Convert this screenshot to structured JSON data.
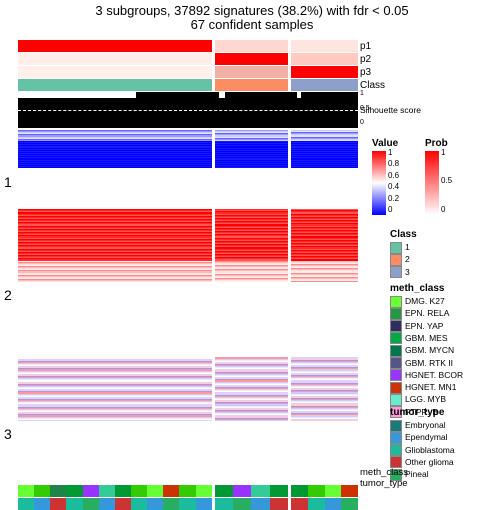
{
  "title_line1": "3 subgroups, 37892 signatures (38.2%) with fdr < 0.05",
  "title_line2": "67 confident samples",
  "annotation_tracks": [
    "p1",
    "p2",
    "p3",
    "Class"
  ],
  "silhouette_label": "Silhouette score",
  "sil_ticks": [
    "1",
    "0.5",
    "0"
  ],
  "column_groups": {
    "widths_pct": [
      58,
      22,
      20
    ],
    "p_tracks": {
      "p1": [
        "#ff0000",
        "#fed8d0",
        "#ffe5e0"
      ],
      "p2": [
        "#ffeee9",
        "#ff0000",
        "#ffc8c0"
      ],
      "p3": [
        "#fff0ec",
        "#f0b0a6",
        "#ff0000"
      ],
      "Class": [
        "#66c2a5",
        "#fc8d62",
        "#8da0cb"
      ]
    },
    "sil_white_width_pct": [
      60,
      8,
      6
    ]
  },
  "row_groups": [
    {
      "label": "1",
      "height_pct": 22,
      "palette": "blue"
    },
    {
      "label": "2",
      "height_pct": 42,
      "palette": "red"
    },
    {
      "label": "3",
      "height_pct": 36,
      "palette": "mixed"
    }
  ],
  "bottom_tracks": {
    "meth_class": {
      "label": "meth_class",
      "colors": [
        "#66ff33",
        "#33cc00",
        "#1e8449",
        "#009933",
        "#9933ff",
        "#33cc99",
        "#009933",
        "#33cc00",
        "#66ff33",
        "#cc3300",
        "#33cc00"
      ]
    },
    "tumor_type": {
      "label": "tumor_type",
      "colors": [
        "#1abc9c",
        "#3498db",
        "#cc3333",
        "#1abc9c",
        "#27ae60",
        "#3498db",
        "#cc3333",
        "#1abc9c",
        "#3498db",
        "#27ae60"
      ]
    }
  },
  "legends": {
    "value": {
      "title": "Value",
      "ticks": [
        "1",
        "0.8",
        "0.6",
        "0.4",
        "0.2",
        "0"
      ],
      "gradient": [
        "#ff0000",
        "#ffffff",
        "#0000ff"
      ]
    },
    "prob": {
      "title": "Prob",
      "ticks": [
        "1",
        "0.5",
        "0"
      ],
      "gradient": [
        "#ff0000",
        "#ffffff"
      ]
    },
    "class": {
      "title": "Class",
      "items": [
        {
          "label": "1",
          "color": "#66c2a5"
        },
        {
          "label": "2",
          "color": "#fc8d62"
        },
        {
          "label": "3",
          "color": "#8da0cb"
        }
      ]
    },
    "meth_class": {
      "title": "meth_class",
      "items": [
        {
          "label": "DMG. K27",
          "color": "#66ff33"
        },
        {
          "label": "EPN. RELA",
          "color": "#229944"
        },
        {
          "label": "EPN. YAP",
          "color": "#2d2d60"
        },
        {
          "label": "GBM. MES",
          "color": "#00aa44"
        },
        {
          "label": "GBM. MYCN",
          "color": "#00774d"
        },
        {
          "label": "GBM. RTK II",
          "color": "#555588"
        },
        {
          "label": "HGNET. BCOR",
          "color": "#9933ff"
        },
        {
          "label": "HGNET. MN1",
          "color": "#cc3300"
        },
        {
          "label": "LGG. MYB",
          "color": "#66eecc"
        },
        {
          "label": "PTPR. B",
          "color": "#ff99dd"
        }
      ]
    },
    "tumor_type": {
      "title": "tumor_type",
      "items": [
        {
          "label": "Embryonal",
          "color": "#1a7a7a"
        },
        {
          "label": "Ependymal",
          "color": "#3498db"
        },
        {
          "label": "Glioblastoma",
          "color": "#1abc9c"
        },
        {
          "label": "Other glioma",
          "color": "#cc3333"
        },
        {
          "label": "Pineal",
          "color": "#27ae60"
        }
      ]
    }
  },
  "heatmap_style": {
    "blue_colors": [
      "#0000ff",
      "#1a1aff",
      "#3333ff",
      "#6666ff",
      "#9999ff",
      "#ccccff",
      "#e0e0ff"
    ],
    "red_colors": [
      "#ff0000",
      "#ff2a2a",
      "#ff5555",
      "#ff8888",
      "#ffbbbb",
      "#ffe0e0",
      "#fff0f0"
    ],
    "mixed_colors": [
      "#ff9999",
      "#ffcccc",
      "#ffffff",
      "#ccccff",
      "#9999ff",
      "#e0d0ff",
      "#f0e8ff"
    ]
  }
}
